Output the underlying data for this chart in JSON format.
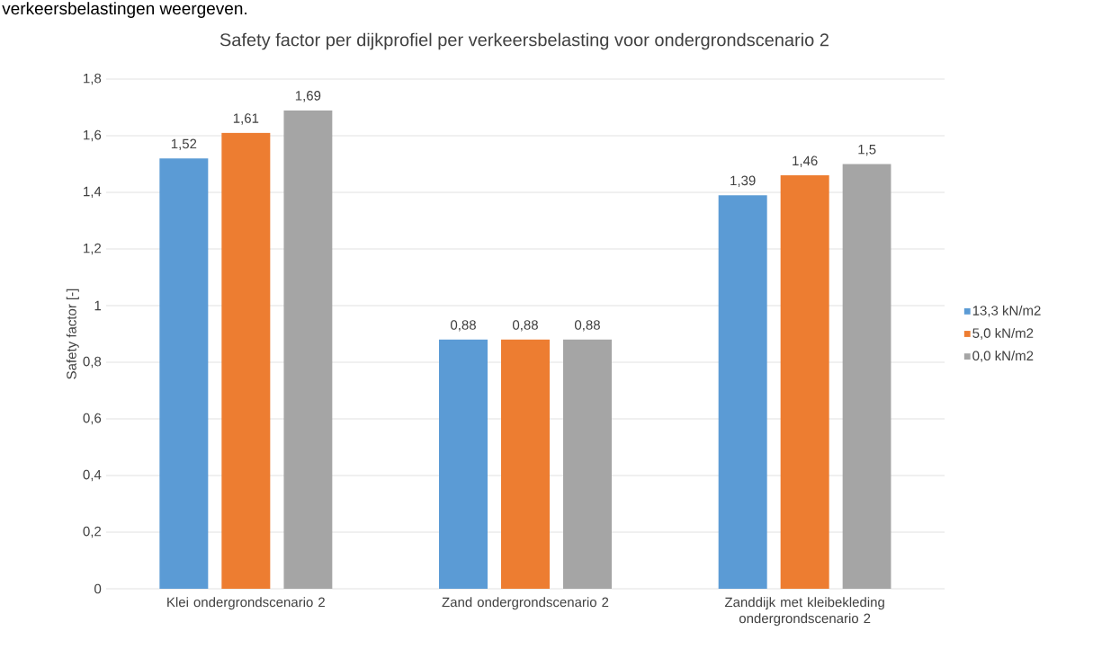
{
  "chart_data": {
    "type": "bar",
    "title": "Safety factor per dijkprofiel per verkeersbelasting voor ondergrondscenario 2",
    "ylabel": "Safety factor [-]",
    "annotations": [
      "verkeersbelastingen weergeven."
    ],
    "categories": [
      "Klei ondergrondscenario 2",
      "Zand ondergrondscenario 2",
      "Zanddijk met kleibekleding ondergrondscenario 2"
    ],
    "series": [
      {
        "name": "13,3 kN/m2",
        "color": "#5b9bd5",
        "values": [
          1.52,
          0.88,
          1.39
        ],
        "value_labels": [
          "1,52",
          "0,88",
          "1,39"
        ]
      },
      {
        "name": "5,0 kN/m2",
        "color": "#ed7d31",
        "values": [
          1.61,
          0.88,
          1.46
        ],
        "value_labels": [
          "1,61",
          "0,88",
          "1,46"
        ]
      },
      {
        "name": "0,0 kN/m2",
        "color": "#a5a5a5",
        "values": [
          1.69,
          0.88,
          1.5
        ],
        "value_labels": [
          "1,69",
          "0,88",
          "1,5"
        ]
      }
    ],
    "ylim": [
      0,
      1.8
    ],
    "yticks": [
      0,
      {
        "value": 0.2,
        "label": "0,2"
      },
      {
        "value": 0.4,
        "label": "0,4"
      },
      {
        "value": 0.6,
        "label": "0,6"
      },
      {
        "value": 0.8,
        "label": "0,8"
      },
      1,
      {
        "value": 1.2,
        "label": "1,2"
      },
      {
        "value": 1.4,
        "label": "1,4"
      },
      {
        "value": 1.6,
        "label": "1,6"
      },
      {
        "value": 1.8,
        "label": "1,8"
      }
    ],
    "grid": "y",
    "legend": "right"
  }
}
